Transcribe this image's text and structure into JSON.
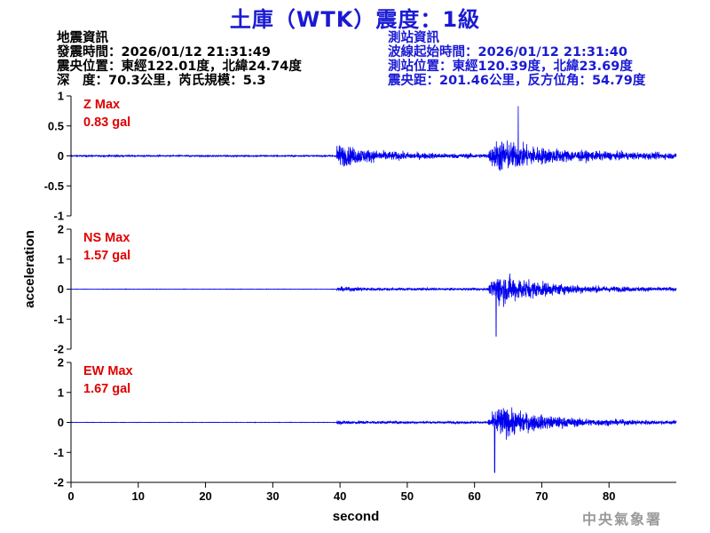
{
  "title": "土庫（WTK）震度：1級",
  "quake_info": {
    "heading": "地震資訊",
    "origin_time": "發震時間：2026/01/12 21:31:49",
    "epicenter": "震央位置：東經122.01度，北緯24.74度",
    "depth_magnitude": "深　度：70.3公里，芮氏規模：5.3"
  },
  "station_info": {
    "heading": "測站資訊",
    "wave_start": "波線起始時間：2026/01/12 21:31:40",
    "station_location": "測站位置：東經120.39度，北緯23.69度",
    "distance_azimuth": "震央距：201.46公里，反方位角：54.79度"
  },
  "agency": "中央氣象署",
  "colors": {
    "trace": "#0000ee",
    "max_label": "#e00000",
    "title": "#1a1ad4"
  },
  "chart_data": {
    "type": "line",
    "xlabel": "second",
    "ylabel": "acceleration",
    "xlim": [
      0,
      90
    ],
    "xticks": [
      0,
      10,
      20,
      30,
      40,
      50,
      60,
      70,
      80
    ],
    "p_wave_onset": 39.5,
    "s_wave_onset": 62,
    "panels": [
      {
        "component": "Z",
        "max_label": "Z Max",
        "max_value": "0.83 gal",
        "ylim": [
          -1,
          1
        ],
        "yticks": [
          "1",
          "0.5",
          "0",
          "-0.5",
          "-1"
        ],
        "peak": 0.83,
        "peak_time": 66.5,
        "noise": 0.02,
        "p_amp": 0.3,
        "s_amp": 0.4,
        "coda_amp": 0.06
      },
      {
        "component": "NS",
        "max_label": "NS Max",
        "max_value": "1.57 gal",
        "ylim": [
          -2,
          2
        ],
        "yticks": [
          "2",
          "1",
          "0",
          "-1",
          "-2"
        ],
        "peak": -1.57,
        "peak_time": 63.2,
        "noise": 0.01,
        "p_amp": 0.08,
        "s_amp": 0.85,
        "coda_amp": 0.08
      },
      {
        "component": "EW",
        "max_label": "EW Max",
        "max_value": "1.67 gal",
        "ylim": [
          -2,
          2
        ],
        "yticks": [
          "2",
          "1",
          "0",
          "-1",
          "-2"
        ],
        "peak": -1.67,
        "peak_time": 63.0,
        "noise": 0.01,
        "p_amp": 0.07,
        "s_amp": 0.85,
        "coda_amp": 0.08
      }
    ]
  }
}
